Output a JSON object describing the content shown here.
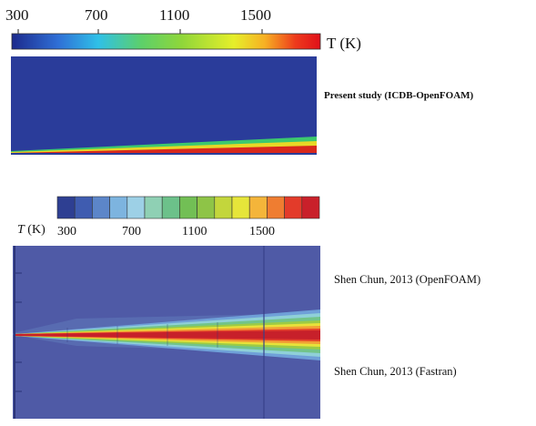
{
  "top_figure": {
    "colorbar": {
      "ticks": [
        "300",
        "700",
        "1100",
        "1500"
      ],
      "unit_label": "T (K)",
      "stops": [
        "#1c2a8c",
        "#2f6fd6",
        "#2fc0e8",
        "#5dd06a",
        "#8fd63a",
        "#e6ef2a",
        "#f7b023",
        "#ee3a1c",
        "#e0101a"
      ]
    },
    "caption": "Present study (ICDB-OpenFOAM)",
    "colors": {
      "background": "#2a3c9a",
      "layer_green": "#3cc86e",
      "layer_yellow": "#e8d826",
      "layer_red": "#d8281c"
    }
  },
  "bottom_figure": {
    "colorbar": {
      "ticks": [
        "300",
        "700",
        "1100",
        "1500"
      ],
      "unit_symbol": "T",
      "unit_suffix": " (K)",
      "bins": [
        "#2e3f92",
        "#3f5cb0",
        "#5c86c9",
        "#7db4df",
        "#9dd0e6",
        "#8fd0b4",
        "#6cc18a",
        "#72bf55",
        "#8ec447",
        "#c3d63c",
        "#e6e53a",
        "#f4b53a",
        "#ef7d31",
        "#e33b2a",
        "#c9202a"
      ]
    },
    "caption_upper": "Shen Chun, 2013 (OpenFOAM)",
    "caption_lower": "Shen Chun, 2013 (Fastran)",
    "colors": {
      "background": "#4f5aa6"
    }
  }
}
